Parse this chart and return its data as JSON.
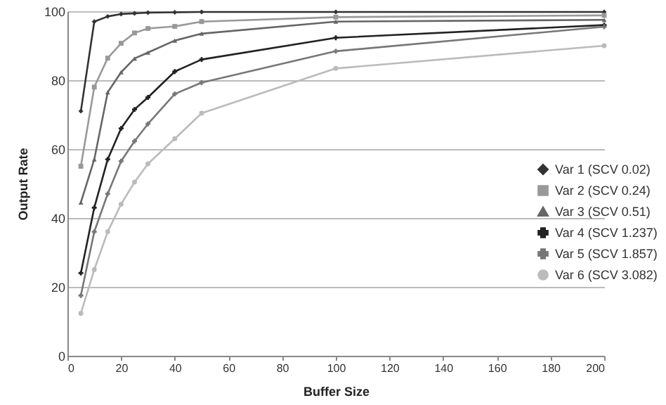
{
  "chart_data": {
    "type": "line",
    "xlabel": "Buffer Size",
    "ylabel": "Output Rate",
    "x": [
      5,
      10,
      15,
      20,
      25,
      30,
      40,
      50,
      100,
      200
    ],
    "series": [
      {
        "name": "Var 1 (SCV 0.02)",
        "color": "#333333",
        "marker": "diamond",
        "values": [
          71,
          97,
          98.5,
          99.2,
          99.4,
          99.6,
          99.7,
          99.8,
          99.8,
          99.8
        ]
      },
      {
        "name": "Var 2 (SCV 0.24)",
        "color": "#999999",
        "marker": "square",
        "values": [
          55,
          78,
          86.4,
          90.7,
          93.7,
          95,
          95.6,
          97,
          98.3,
          98.8
        ]
      },
      {
        "name": "Var 3 (SCV 0.51)",
        "color": "#666666",
        "marker": "triangle",
        "values": [
          44.5,
          57,
          76.5,
          82.3,
          86.3,
          88,
          91.5,
          93.5,
          97,
          97.5
        ]
      },
      {
        "name": "Var 4 (SCV 1.237)",
        "color": "#222222",
        "marker": "cross",
        "values": [
          24,
          43,
          57,
          66,
          71.5,
          75,
          82.5,
          86,
          92.3,
          96
        ]
      },
      {
        "name": "Var 5 (SCV 1.857)",
        "color": "#777777",
        "marker": "cross",
        "values": [
          17.5,
          36,
          47,
          56.5,
          62.3,
          67.3,
          76,
          79.3,
          88.4,
          95.5
        ]
      },
      {
        "name": "Var 6 (SCV 3.082)",
        "color": "#bbbbbb",
        "marker": "circle",
        "values": [
          12.3,
          25,
          36,
          44,
          50.4,
          55.7,
          63,
          70.4,
          83.4,
          90
        ]
      }
    ],
    "xlim": [
      0,
      200
    ],
    "xticks": [
      0,
      20,
      40,
      60,
      80,
      100,
      120,
      140,
      160,
      180,
      200
    ],
    "ylim": [
      0,
      100
    ],
    "yticks": [
      0,
      20,
      40,
      60,
      80,
      100
    ],
    "grid": "y",
    "legend": "right",
    "line_style": "solid"
  }
}
